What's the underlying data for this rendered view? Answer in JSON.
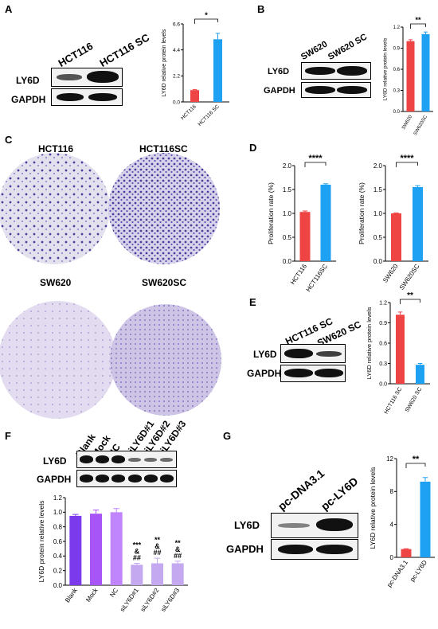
{
  "panels": {
    "A": {
      "letter": "A",
      "blot": {
        "headers": [
          "HCT116",
          "HCT116 SC"
        ],
        "rows": [
          "LY6D",
          "GAPDH"
        ]
      },
      "chart": {
        "ylabel": "LY6D relative protein levels",
        "sig": "*"
      }
    },
    "B": {
      "letter": "B",
      "blot": {
        "headers": [
          "SW620",
          "SW620 SC"
        ],
        "rows": [
          "LY6D",
          "GAPDH"
        ]
      },
      "chart": {
        "ylabel": "LY6D relative protein levels",
        "sig": "**"
      }
    },
    "C": {
      "letter": "C",
      "titles": [
        "HCT116",
        "HCT116SC",
        "SW620",
        "SW620SC"
      ]
    },
    "D": {
      "letter": "D",
      "chart1": {
        "ylabel": "Proliferation rate (%)",
        "sig": "****"
      },
      "chart2": {
        "ylabel": "Proliferation rate (%)",
        "sig": "****"
      }
    },
    "E": {
      "letter": "E",
      "blot": {
        "headers": [
          "HCT116 SC",
          "SW620 SC"
        ],
        "rows": [
          "LY6D",
          "GAPDH"
        ]
      },
      "chart": {
        "ylabel": "LY6D relative protein levels",
        "sig": "**"
      }
    },
    "F": {
      "letter": "F",
      "blot": {
        "headers": [
          "Blank",
          "Mock",
          "NC",
          "siLY6D#1",
          "siLY6D#2",
          "siLY6D#3"
        ],
        "rows": [
          "LY6D",
          "GAPDH"
        ]
      },
      "chart": {
        "ylabel": "LY6D protein relative levels"
      }
    },
    "G": {
      "letter": "G",
      "blot": {
        "headers": [
          "pc-DNA3.1",
          "pc-LY6D"
        ],
        "rows": [
          "LY6D",
          "GAPDH"
        ]
      },
      "chart": {
        "ylabel": "LY6D relative protein levels",
        "sig": "**"
      }
    }
  },
  "chart_data": [
    {
      "id": "A",
      "type": "bar",
      "categories": [
        "HCT116",
        "HCT116 SC"
      ],
      "values": [
        1.0,
        5.3
      ],
      "errors": [
        0.05,
        0.5
      ],
      "colors": [
        "#ef4444",
        "#1ea1f2"
      ],
      "ylim": [
        0,
        6.6
      ],
      "yticks": [
        "0.0",
        "2.2",
        "4.4",
        "6.6"
      ],
      "ytick_values": [
        0,
        2.2,
        4.4,
        6.6
      ],
      "ylabel": "LY6D relative protein levels",
      "sig": "*"
    },
    {
      "id": "B",
      "type": "bar",
      "categories": [
        "SW620",
        "SW620SC"
      ],
      "values": [
        1.0,
        1.1
      ],
      "errors": [
        0.02,
        0.03
      ],
      "colors": [
        "#ef4444",
        "#1ea1f2"
      ],
      "ylim": [
        0,
        1.2
      ],
      "yticks": [
        "0.0",
        "0.3",
        "0.6",
        "0.9",
        "1.2"
      ],
      "ytick_values": [
        0,
        0.3,
        0.6,
        0.9,
        1.2
      ],
      "ylabel": "LY6D relative protein levels",
      "sig": "**"
    },
    {
      "id": "D1",
      "type": "bar",
      "categories": [
        "HCT116",
        "HCT116SC"
      ],
      "values": [
        1.03,
        1.6
      ],
      "errors": [
        0.02,
        0.02
      ],
      "colors": [
        "#ef4444",
        "#1ea1f2"
      ],
      "ylim": [
        0,
        2.0
      ],
      "yticks": [
        "0.0",
        "0.5",
        "1.0",
        "1.5",
        "2.0"
      ],
      "ytick_values": [
        0,
        0.5,
        1.0,
        1.5,
        2.0
      ],
      "ylabel": "Proliferation rate (%)",
      "sig": "****"
    },
    {
      "id": "D2",
      "type": "bar",
      "categories": [
        "SW620",
        "SW620SC"
      ],
      "values": [
        1.0,
        1.55
      ],
      "errors": [
        0.01,
        0.03
      ],
      "colors": [
        "#ef4444",
        "#1ea1f2"
      ],
      "ylim": [
        0,
        2.0
      ],
      "yticks": [
        "0.0",
        "0.5",
        "1.0",
        "1.5",
        "2.0"
      ],
      "ytick_values": [
        0,
        0.5,
        1.0,
        1.5,
        2.0
      ],
      "ylabel": "Proliferation rate (%)",
      "sig": "****"
    },
    {
      "id": "E",
      "type": "bar",
      "categories": [
        "HCT116 SC",
        "SW620 SC"
      ],
      "values": [
        1.02,
        0.28
      ],
      "errors": [
        0.04,
        0.02
      ],
      "colors": [
        "#ef4444",
        "#1ea1f2"
      ],
      "ylim": [
        0,
        1.2
      ],
      "yticks": [
        "0.0",
        "0.3",
        "0.6",
        "0.9",
        "1.2"
      ],
      "ytick_values": [
        0,
        0.3,
        0.6,
        0.9,
        1.2
      ],
      "ylabel": "LY6D relative protein levels",
      "sig": "**"
    },
    {
      "id": "F",
      "type": "bar",
      "categories": [
        "Blank",
        "Mock",
        "NC",
        "siLY6D#1",
        "siLY6D#2",
        "siLY6D#3"
      ],
      "values": [
        0.95,
        0.98,
        1.0,
        0.28,
        0.3,
        0.3
      ],
      "errors": [
        0.02,
        0.05,
        0.05,
        0.02,
        0.07,
        0.03
      ],
      "colors": [
        "#7c3aed",
        "#a855f7",
        "#c084fc",
        "#c4a8f0",
        "#c4a8f0",
        "#c4a8f0"
      ],
      "ylim": [
        0,
        1.2
      ],
      "yticks": [
        "0.0",
        "0.2",
        "0.4",
        "0.6",
        "0.8",
        "1.0",
        "1.2"
      ],
      "ytick_values": [
        0,
        0.2,
        0.4,
        0.6,
        0.8,
        1.0,
        1.2
      ],
      "ylabel": "LY6D protein relative levels",
      "annotations": [
        [],
        [],
        [],
        [
          "***",
          "&",
          "##"
        ],
        [
          "**",
          "&",
          "##"
        ],
        [
          "**",
          "&",
          "##"
        ]
      ]
    },
    {
      "id": "G",
      "type": "bar",
      "categories": [
        "pc-DNA3.1",
        "pc-LY6D"
      ],
      "values": [
        1.0,
        9.2
      ],
      "errors": [
        0.05,
        0.5
      ],
      "colors": [
        "#ef4444",
        "#1ea1f2"
      ],
      "ylim": [
        0,
        12
      ],
      "yticks": [
        "0",
        "4",
        "8",
        "12"
      ],
      "ytick_values": [
        0,
        4,
        8,
        12
      ],
      "ylabel": "LY6D relative protein levels",
      "sig": "**"
    }
  ]
}
